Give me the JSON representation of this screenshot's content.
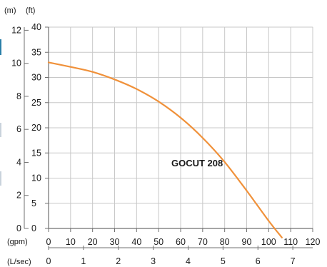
{
  "chart_data": {
    "type": "line",
    "title": "",
    "axes": {
      "m": {
        "unit": "(m)",
        "ticks": [
          0,
          2,
          4,
          6,
          8,
          10,
          12
        ],
        "range": [
          0,
          12.19
        ]
      },
      "ft": {
        "unit": "(ft)",
        "ticks": [
          0,
          5,
          10,
          15,
          20,
          25,
          30,
          35,
          40
        ],
        "range": [
          0,
          40
        ]
      },
      "gpm": {
        "unit": "(gpm)",
        "ticks": [
          0,
          10,
          20,
          30,
          40,
          50,
          60,
          70,
          80,
          90,
          100,
          110,
          120
        ],
        "range": [
          0,
          120
        ]
      },
      "lsec": {
        "unit": "(L/sec)",
        "ticks": [
          0,
          1,
          2,
          3,
          4,
          5,
          6,
          7
        ],
        "range": [
          0,
          7.57
        ]
      }
    },
    "series": [
      {
        "name": "GOCUT 208",
        "color": "#f0913a",
        "x": [
          0,
          10,
          20,
          30,
          40,
          50,
          60,
          70,
          80,
          90,
          100,
          106
        ],
        "y": [
          33.0,
          32.1,
          31.1,
          29.6,
          27.7,
          25.2,
          22.0,
          18.0,
          13.2,
          7.5,
          1.5,
          -1.8
        ]
      }
    ],
    "grid": true
  },
  "style": {
    "grid_color": "#c8c8c8",
    "axis_color": "#707070",
    "text_color": "#1a1a1a"
  }
}
